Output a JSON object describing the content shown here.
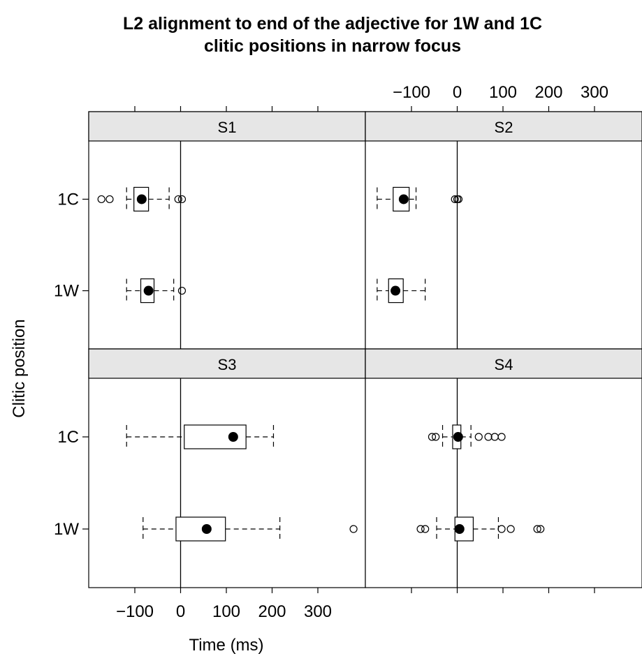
{
  "chart_data": {
    "type": "box",
    "title_line1": "L2 alignment to end of the adjective for 1W and 1C",
    "title_line2": "clitic positions in narrow focus",
    "xlabel": "Time (ms)",
    "ylabel": "Clitic position",
    "xlim": [
      -200,
      400
    ],
    "x_ticks": [
      -100,
      0,
      100,
      200,
      300
    ],
    "categories": [
      "1C",
      "1W"
    ],
    "grid": false,
    "reference_line_x": 0,
    "panels": [
      {
        "name": "S1",
        "boxes": [
          {
            "category": "1C",
            "whisker_low": -118,
            "q1": -102,
            "median": -85,
            "q3": -70,
            "whisker_high": -25,
            "outliers": [
              -173,
              -155,
              -5,
              3
            ]
          },
          {
            "category": "1W",
            "whisker_low": -118,
            "q1": -87,
            "median": -70,
            "q3": -58,
            "whisker_high": -15,
            "outliers": [
              3
            ]
          }
        ]
      },
      {
        "name": "S2",
        "boxes": [
          {
            "category": "1C",
            "whisker_low": -175,
            "q1": -140,
            "median": -117,
            "q3": -105,
            "whisker_high": -90,
            "outliers": [
              -5,
              0,
              3
            ]
          },
          {
            "category": "1W",
            "whisker_low": -175,
            "q1": -150,
            "median": -135,
            "q3": -118,
            "whisker_high": -70,
            "outliers": []
          }
        ]
      },
      {
        "name": "S3",
        "boxes": [
          {
            "category": "1C",
            "whisker_low": -118,
            "q1": 8,
            "median": 115,
            "q3": 143,
            "whisker_high": 203,
            "outliers": []
          },
          {
            "category": "1W",
            "whisker_low": -82,
            "q1": -10,
            "median": 57,
            "q3": 98,
            "whisker_high": 217,
            "outliers": [
              378
            ]
          }
        ]
      },
      {
        "name": "S4",
        "boxes": [
          {
            "category": "1C",
            "whisker_low": -32,
            "q1": -10,
            "median": 2,
            "q3": 8,
            "whisker_high": 30,
            "outliers": [
              -55,
              -47,
              47,
              68,
              82,
              97
            ]
          },
          {
            "category": "1W",
            "whisker_low": -45,
            "q1": -5,
            "median": 5,
            "q3": 35,
            "whisker_high": 90,
            "outliers": [
              -80,
              -70,
              97,
              117,
              175,
              182
            ]
          }
        ]
      }
    ]
  }
}
